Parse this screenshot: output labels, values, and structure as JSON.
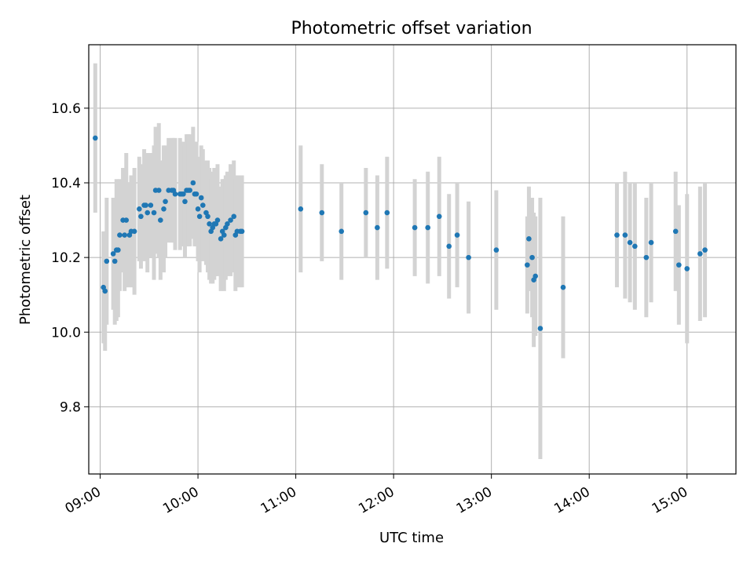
{
  "chart_data": {
    "type": "scatter",
    "title": "Photometric offset variation",
    "xlabel": "UTC time",
    "ylabel": "Photometric offset",
    "x_ticks": [
      "09:00",
      "10:00",
      "11:00",
      "12:00",
      "13:00",
      "14:00",
      "15:00"
    ],
    "y_ticks": [
      "9.8",
      "10.0",
      "10.2",
      "10.4",
      "10.6"
    ],
    "xlim": [
      "08:53",
      "15:30"
    ],
    "ylim": [
      9.62,
      10.77
    ],
    "grid": true,
    "marker_color": "#1f77b4",
    "errorbar_color": "#d3d3d3",
    "series": [
      {
        "x": [
          "08:57",
          "09:02",
          "09:03",
          "09:04",
          "09:08",
          "09:09",
          "09:10",
          "09:11",
          "09:12",
          "09:14",
          "09:15",
          "09:16",
          "09:18",
          "09:19",
          "09:21",
          "09:24",
          "09:25",
          "09:27",
          "09:28",
          "09:29",
          "09:31",
          "09:33",
          "09:34",
          "09:36",
          "09:37",
          "09:39",
          "09:40",
          "09:42",
          "09:44",
          "09:45",
          "09:46",
          "09:49",
          "09:50",
          "09:51",
          "09:52",
          "09:53",
          "09:54",
          "09:55",
          "09:57",
          "09:58",
          "09:59",
          "10:00",
          "10:01",
          "10:02",
          "10:03",
          "10:05",
          "10:06",
          "10:07",
          "10:08",
          "10:09",
          "10:10",
          "10:11",
          "10:12",
          "10:14",
          "10:15",
          "10:16",
          "10:17",
          "10:18",
          "10:20",
          "10:22",
          "10:23",
          "10:24",
          "10:26",
          "10:27",
          "11:03",
          "11:16",
          "11:28",
          "11:43",
          "11:50",
          "11:56",
          "12:13",
          "12:21",
          "12:28",
          "12:34",
          "12:39",
          "12:46",
          "13:03",
          "13:22",
          "13:23",
          "13:25",
          "13:26",
          "13:27",
          "13:30",
          "13:44",
          "14:17",
          "14:22",
          "14:25",
          "14:28",
          "14:35",
          "14:38",
          "14:53",
          "14:55",
          "15:00",
          "15:08",
          "15:11"
        ],
        "y": [
          10.52,
          10.12,
          10.11,
          10.19,
          10.21,
          10.19,
          10.22,
          10.22,
          10.26,
          10.3,
          10.26,
          10.3,
          10.26,
          10.27,
          10.27,
          10.33,
          10.31,
          10.34,
          10.34,
          10.32,
          10.34,
          10.32,
          10.38,
          10.38,
          10.3,
          10.33,
          10.35,
          10.38,
          10.38,
          10.38,
          10.37,
          10.37,
          10.37,
          10.37,
          10.35,
          10.38,
          10.38,
          10.38,
          10.4,
          10.37,
          10.37,
          10.33,
          10.31,
          10.36,
          10.34,
          10.32,
          10.31,
          10.29,
          10.27,
          10.28,
          10.29,
          10.29,
          10.3,
          10.25,
          10.27,
          10.26,
          10.28,
          10.29,
          10.3,
          10.31,
          10.26,
          10.27,
          10.27,
          10.27,
          10.33,
          10.32,
          10.27,
          10.32,
          10.28,
          10.32,
          10.28,
          10.28,
          10.31,
          10.23,
          10.26,
          10.2,
          10.22,
          10.18,
          10.25,
          10.2,
          10.14,
          10.15,
          10.01,
          10.12,
          10.26,
          10.26,
          10.24,
          10.23,
          10.2,
          10.24,
          10.27,
          10.18,
          10.17,
          10.21,
          10.22
        ],
        "err": [
          0.2,
          0.15,
          0.16,
          0.17,
          0.15,
          0.17,
          0.19,
          0.18,
          0.15,
          0.14,
          0.15,
          0.18,
          0.14,
          0.15,
          0.17,
          0.14,
          0.14,
          0.15,
          0.14,
          0.16,
          0.14,
          0.18,
          0.17,
          0.18,
          0.16,
          0.17,
          0.15,
          0.14,
          0.14,
          0.14,
          0.15,
          0.15,
          0.14,
          0.14,
          0.15,
          0.15,
          0.15,
          0.15,
          0.15,
          0.14,
          0.14,
          0.14,
          0.15,
          0.14,
          0.15,
          0.14,
          0.15,
          0.15,
          0.14,
          0.15,
          0.15,
          0.14,
          0.15,
          0.14,
          0.14,
          0.15,
          0.14,
          0.14,
          0.15,
          0.15,
          0.15,
          0.15,
          0.15,
          0.15,
          0.17,
          0.13,
          0.13,
          0.12,
          0.14,
          0.15,
          0.13,
          0.15,
          0.16,
          0.14,
          0.14,
          0.15,
          0.16,
          0.13,
          0.14,
          0.16,
          0.18,
          0.16,
          0.35,
          0.19,
          0.14,
          0.17,
          0.16,
          0.17,
          0.16,
          0.16,
          0.16,
          0.16,
          0.2,
          0.18,
          0.18
        ]
      }
    ]
  }
}
